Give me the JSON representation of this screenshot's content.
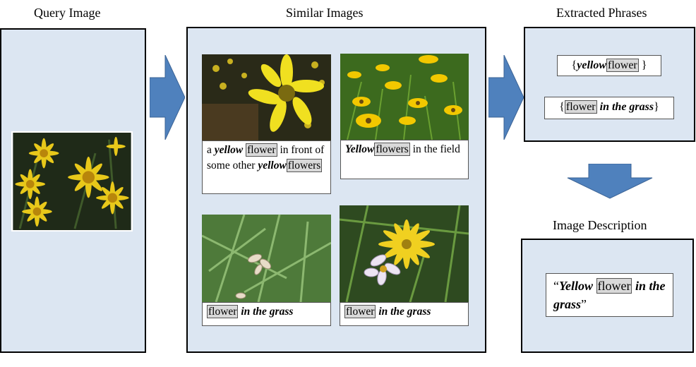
{
  "titles": {
    "query": "Query Image",
    "similar": "Similar Images",
    "phrases": "Extracted Phrases",
    "description": "Image Description"
  },
  "colors": {
    "panel_fill": "#dce6f2",
    "arrow_fill": "#4f81bd",
    "highlight_fill": "#d9d9d9"
  },
  "captions": {
    "c1": {
      "p1": "a ",
      "p2": "yellow",
      "p3": "flower",
      "p4": " in front of some other ",
      "p5": "yellow",
      "p6": "flowers"
    },
    "c2": {
      "p1": "Yellow",
      "p2": "flowers",
      "p3": " in the field"
    },
    "c3": {
      "p1": "flower",
      "p2": " in the grass"
    },
    "c4": {
      "p1": "flower",
      "p2": " in the grass"
    }
  },
  "phrases": {
    "ph1": {
      "open": "{",
      "a": "yellow",
      "b": "flower",
      "close": " }"
    },
    "ph2": {
      "open": "{",
      "a": "flower",
      "b": " in the grass",
      "close": "}"
    }
  },
  "description": {
    "open": "“",
    "a": "Yellow",
    "b": "flower",
    "c": " in the grass",
    "close": "”"
  }
}
